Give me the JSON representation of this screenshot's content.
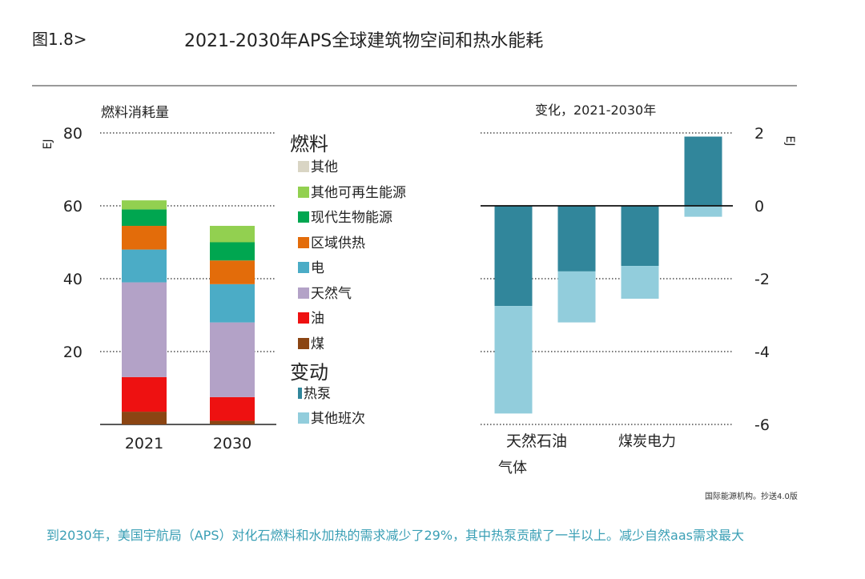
{
  "header": {
    "figure_label": "图1.8>",
    "title": "2021-2030年APS全球建筑物空间和热水能耗"
  },
  "colors": {
    "其他": "#d9d5c4",
    "其他可再生能源": "#92d050",
    "现代生物能源": "#00a650",
    "区域供热": "#e36c0a",
    "电": "#4bacc6",
    "天然气": "#b3a2c7",
    "油": "#ee1111",
    "煤": "#8b4513",
    "热泵": "#31869b",
    "其他班次": "#92cddc"
  },
  "legend": {
    "fuel_heading": "燃料",
    "fuel_items": [
      "其他",
      "其他可再生能源",
      "现代生物能源",
      "区域供热",
      "电",
      "天然气",
      "油",
      "煤"
    ],
    "change_heading": "变动",
    "change_items": [
      "热泵",
      "其他班次"
    ]
  },
  "chart_data": [
    {
      "type": "bar",
      "stacked": true,
      "title": "燃料消耗量",
      "ylabel": "EJ",
      "ylim": [
        0,
        80
      ],
      "yticks": [
        "20",
        "40",
        "60",
        "80"
      ],
      "categories": [
        "2021",
        "2030"
      ],
      "series": [
        {
          "name": "煤",
          "values": [
            3.5,
            1
          ]
        },
        {
          "name": "油",
          "values": [
            9.5,
            6.5
          ]
        },
        {
          "name": "天然气",
          "values": [
            26,
            20.5
          ]
        },
        {
          "name": "电",
          "values": [
            9,
            10.5
          ]
        },
        {
          "name": "区域供热",
          "values": [
            6.5,
            6.5
          ]
        },
        {
          "name": "现代生物能源",
          "values": [
            4.5,
            5
          ]
        },
        {
          "name": "其他可再生能源",
          "values": [
            2.5,
            4.5
          ]
        },
        {
          "name": "其他",
          "values": [
            0,
            0
          ]
        }
      ],
      "grid": true
    },
    {
      "type": "bar",
      "stacked": true,
      "title": "变化，2021-2030年",
      "ylabel": "EJ",
      "ylim": [
        -6,
        2
      ],
      "yticks": [
        "-6",
        "-4",
        "-2",
        "0",
        "2"
      ],
      "categories": [
        "天然石油",
        "",
        "煤炭电力",
        ""
      ],
      "sub_label": "气体",
      "series": [
        {
          "name": "热泵",
          "values": [
            -2.75,
            -1.8,
            -1.65,
            1.9
          ]
        },
        {
          "name": "其他班次",
          "values": [
            -2.95,
            -1.4,
            -0.9,
            -0.3
          ]
        }
      ],
      "grid": true
    }
  ],
  "footer": {
    "source": "国际能源机构。抄送4.0版",
    "caption": "到2030年，美国宇航局（APS）对化石燃料和水加热的需求减少了29%，其中热泵贡献了一半以上。减少自然aas需求最大"
  }
}
